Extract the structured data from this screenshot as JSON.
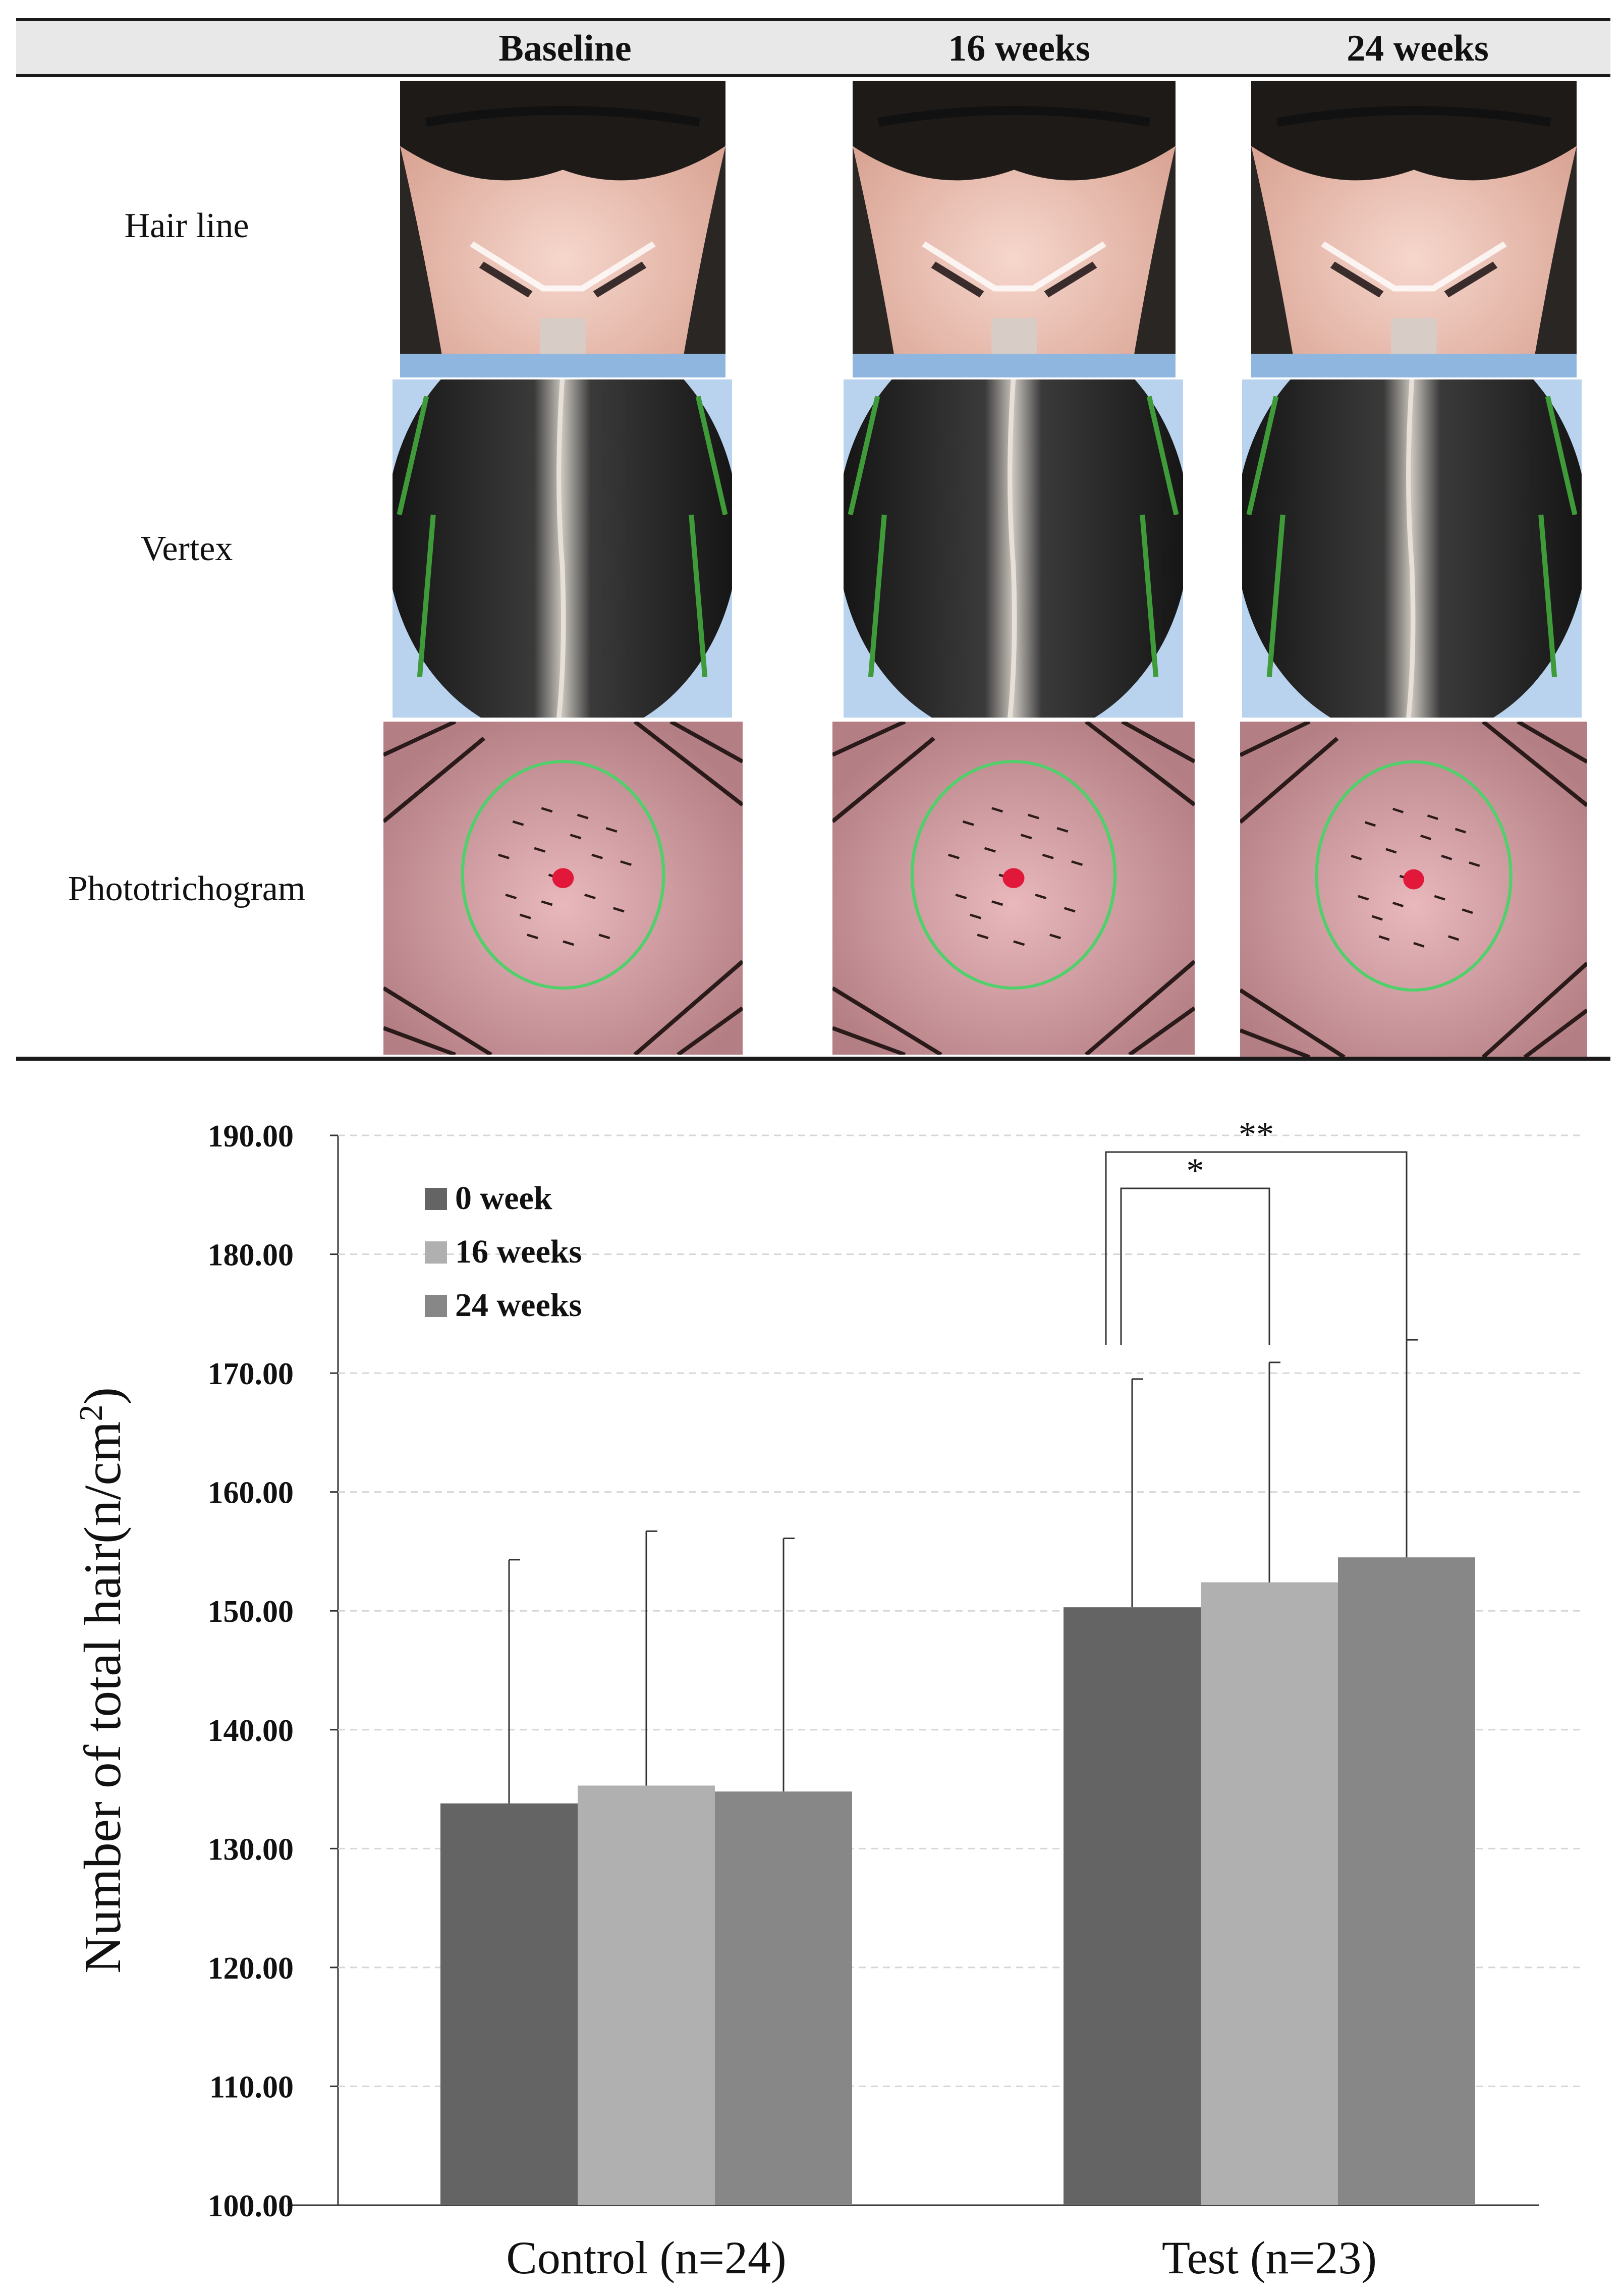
{
  "table": {
    "columns": [
      "Baseline",
      "16 weeks",
      "24 weeks"
    ],
    "rows": [
      "Hair line",
      "Vertex",
      "Phototrichogram"
    ]
  },
  "chart_data": {
    "type": "bar",
    "categories": [
      "Control (n=24)",
      "Test (n=23)"
    ],
    "series": [
      {
        "name": "0 week",
        "color": "#646464",
        "values": [
          133.8,
          150.3
        ],
        "errors": [
          20.5,
          19.2
        ]
      },
      {
        "name": "16 weeks",
        "color": "#b0b0b0",
        "values": [
          135.3,
          152.4
        ],
        "errors": [
          21.4,
          18.5
        ]
      },
      {
        "name": "24 weeks",
        "color": "#878787",
        "values": [
          134.8,
          154.5
        ],
        "errors": [
          21.3,
          18.3
        ]
      }
    ],
    "ylabel": "Number of total hair(n/cm²)",
    "ylabel_main": "Number of total hair(n/cm",
    "ylabel_sup": "2",
    "ylabel_close": ")",
    "ylim": [
      100,
      190
    ],
    "yticks": [
      "100.00",
      "110.00",
      "120.00",
      "130.00",
      "140.00",
      "150.00",
      "160.00",
      "170.00",
      "180.00",
      "190.00"
    ],
    "grid": true,
    "legend_position": "top-left",
    "annotations": [
      {
        "label": "*",
        "from_series": 0,
        "to_series": 1,
        "category": 1
      },
      {
        "label": "**",
        "from_series": 0,
        "to_series": 2,
        "category": 1
      }
    ]
  }
}
